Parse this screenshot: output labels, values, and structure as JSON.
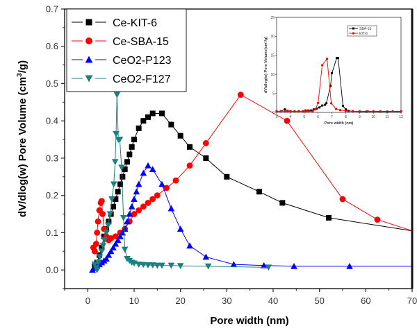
{
  "chart_data": {
    "type": "line",
    "title": "",
    "xlabel": "Pore width (nm)",
    "ylabel": "dV/dlog(w) Pore Volume (cm³/g)",
    "ylabel_parts": {
      "main": "dV/dlog(w) Pore Volume (cm",
      "sup": "3",
      "tail": "/g)"
    },
    "xlim": [
      -5,
      70
    ],
    "ylim": [
      -0.05,
      0.7
    ],
    "xticks": [
      0,
      10,
      20,
      30,
      40,
      50,
      60,
      70
    ],
    "xtick_labels": [
      "0",
      "10",
      "20",
      "30",
      "40",
      "50",
      "60",
      "70"
    ],
    "yticks": [
      0.0,
      0.1,
      0.2,
      0.3,
      0.4,
      0.5,
      0.6,
      0.7
    ],
    "ytick_labels": [
      "0.0",
      "0.1",
      "0.2",
      "0.3",
      "0.4",
      "0.5",
      "0.6",
      "0.7"
    ],
    "grid": false,
    "legend_position": "top-left",
    "series": [
      {
        "name": "Ce-KIT-6",
        "legend_label": "Ce-KIT-6",
        "color": "#000000",
        "marker": "square",
        "x": [
          1.5,
          2.0,
          2.5,
          3.0,
          3.5,
          4.0,
          4.5,
          5.0,
          5.5,
          6.0,
          6.5,
          7.0,
          7.5,
          8.0,
          8.5,
          9.0,
          9.5,
          10.0,
          11.0,
          12.0,
          13.0,
          14.0,
          16.0,
          18.0,
          20.0,
          22.0,
          25.5,
          30.0,
          37.0,
          42.0,
          52.0,
          70.0
        ],
        "y": [
          0.01,
          0.02,
          0.04,
          0.06,
          0.09,
          0.11,
          0.13,
          0.15,
          0.17,
          0.19,
          0.21,
          0.23,
          0.25,
          0.27,
          0.29,
          0.31,
          0.33,
          0.35,
          0.38,
          0.4,
          0.41,
          0.42,
          0.42,
          0.39,
          0.36,
          0.33,
          0.3,
          0.25,
          0.21,
          0.18,
          0.14,
          0.105
        ]
      },
      {
        "name": "Ce-SBA-15",
        "legend_label": "Ce-SBA-15",
        "color": "#ff0000",
        "marker": "circle",
        "x": [
          1.2,
          1.5,
          1.8,
          2.0,
          2.2,
          2.5,
          2.8,
          3.0,
          3.2,
          3.5,
          4.0,
          4.5,
          5.0,
          6.0,
          7.0,
          8.0,
          9.0,
          10.0,
          11.0,
          12.0,
          13.0,
          14.0,
          15.0,
          17.0,
          19.0,
          22.0,
          25.5,
          33.0,
          43.0,
          55.0,
          62.5,
          70.0
        ],
        "y": [
          0.06,
          0.05,
          0.07,
          0.1,
          0.13,
          0.16,
          0.18,
          0.185,
          0.15,
          0.11,
          0.09,
          0.08,
          0.085,
          0.09,
          0.1,
          0.11,
          0.13,
          0.15,
          0.16,
          0.17,
          0.18,
          0.19,
          0.2,
          0.22,
          0.24,
          0.28,
          0.34,
          0.47,
          0.4,
          0.19,
          0.135,
          0.105
        ]
      },
      {
        "name": "CeO2-P123",
        "legend_label": "CeO2-P123",
        "color": "#0000ff",
        "marker": "triangle-up",
        "x": [
          1.0,
          1.5,
          2.0,
          2.5,
          3.0,
          3.5,
          4.0,
          4.5,
          5.0,
          5.5,
          6.0,
          6.5,
          7.0,
          7.5,
          8.0,
          8.5,
          9.0,
          9.5,
          10.0,
          10.5,
          11.0,
          12.0,
          13.0,
          14.0,
          16.0,
          18.0,
          20.0,
          22.0,
          25.5,
          31.5,
          38.0,
          44.5,
          56.5,
          70.0
        ],
        "y": [
          0.0,
          0.005,
          0.01,
          0.015,
          0.02,
          0.025,
          0.03,
          0.04,
          0.05,
          0.06,
          0.07,
          0.08,
          0.09,
          0.1,
          0.11,
          0.13,
          0.15,
          0.17,
          0.19,
          0.21,
          0.23,
          0.26,
          0.28,
          0.27,
          0.23,
          0.165,
          0.11,
          0.065,
          0.035,
          0.015,
          0.012,
          0.01,
          0.01,
          0.01
        ]
      },
      {
        "name": "CeO2-F127",
        "legend_label": "CeO2-F127",
        "color": "#1a8080",
        "marker": "triangle-down",
        "x": [
          1.5,
          1.8,
          2.0,
          2.3,
          2.6,
          3.0,
          3.3,
          3.6,
          4.0,
          4.4,
          4.8,
          5.2,
          5.6,
          5.9,
          6.1,
          6.3,
          6.6,
          6.9,
          7.3,
          7.7,
          8.0,
          8.5,
          9.0,
          9.5,
          10.0,
          11.0,
          12.0,
          13.0,
          14.0,
          15.0,
          16.0,
          18.0,
          20.0,
          26.0,
          39.0
        ],
        "y": [
          0.015,
          0.005,
          0.0,
          0.02,
          0.035,
          0.05,
          0.065,
          0.08,
          0.1,
          0.12,
          0.15,
          0.19,
          0.23,
          0.29,
          0.365,
          0.47,
          0.35,
          0.35,
          0.275,
          0.14,
          0.055,
          0.03,
          0.025,
          0.02,
          0.018,
          0.015,
          0.014,
          0.013,
          0.013,
          0.012,
          0.012,
          0.012,
          0.011,
          0.01,
          0.007
        ]
      }
    ],
    "inset": {
      "type": "line",
      "xlabel": "Pore width (nm)",
      "ylabel": "dV/dlog(w) Pore Volume(cm³/g)",
      "xlim": [
        3,
        12
      ],
      "ylim": [
        0,
        25
      ],
      "xticks": [
        3,
        4,
        5,
        6,
        7,
        8,
        9,
        10,
        11,
        12
      ],
      "xtick_labels": [
        "3",
        "4",
        "5",
        "6",
        "7",
        "8",
        "9",
        "10",
        "11",
        "12"
      ],
      "yticks": [
        0,
        5,
        10,
        15,
        20,
        25
      ],
      "ytick_labels": [
        "0",
        "5",
        "10",
        "15",
        "20",
        "25"
      ],
      "legend_position": "top-right",
      "series": [
        {
          "name": "SBA-15",
          "color": "#000000",
          "marker": "square",
          "x": [
            3.0,
            3.3,
            3.6,
            3.8,
            4.0,
            4.3,
            4.6,
            4.9,
            5.1,
            5.3,
            5.5,
            5.7,
            5.9,
            6.1,
            6.3,
            6.5,
            6.6,
            6.9,
            7.0,
            7.35,
            7.45,
            7.8,
            8.0,
            8.2,
            8.5,
            9.0,
            9.5,
            10.0,
            10.5,
            11.0,
            12.0
          ],
          "y": [
            0.3,
            0.3,
            0.8,
            0.4,
            0.3,
            0.3,
            0.3,
            0.3,
            0.5,
            0.5,
            0.5,
            0.8,
            1.0,
            1.3,
            1.8,
            2.0,
            2.4,
            7.0,
            10.3,
            14.3,
            14.3,
            1.7,
            0.8,
            0.4,
            0.3,
            0.2,
            0.2,
            0.2,
            0.2,
            0.2,
            0.2
          ]
        },
        {
          "name": "KIT-6",
          "color": "#ff0000",
          "marker": "circle",
          "x": [
            3.0,
            3.3,
            3.6,
            3.8,
            4.0,
            4.3,
            4.6,
            4.9,
            5.1,
            5.3,
            5.6,
            5.8,
            6.0,
            6.3,
            6.65,
            6.95,
            7.3,
            7.6,
            8.0,
            8.5,
            9.0,
            9.6,
            10.0,
            10.5,
            11.4,
            12.0
          ],
          "y": [
            0.3,
            0.3,
            0.3,
            0.3,
            0.3,
            0.3,
            0.3,
            0.3,
            0.3,
            0.3,
            0.3,
            0.8,
            2.5,
            12.4,
            14.1,
            2.4,
            0.9,
            0.6,
            0.4,
            0.3,
            0.3,
            0.3,
            0.3,
            0.3,
            0.3,
            0.3
          ]
        }
      ]
    }
  }
}
